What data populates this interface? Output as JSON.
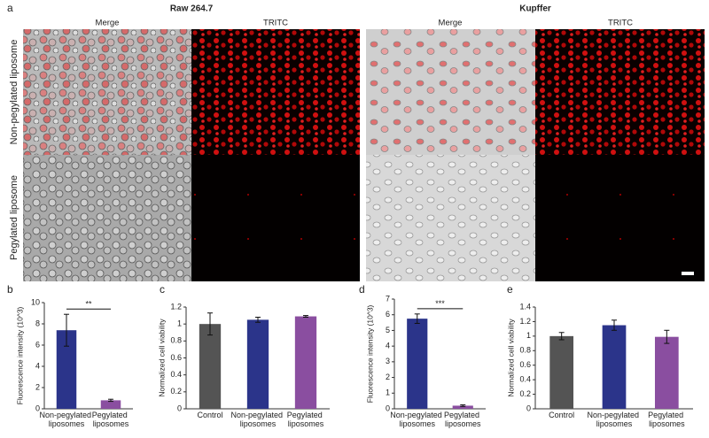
{
  "panel_a": {
    "label": "a",
    "groups": [
      {
        "title": "Raw 264.7",
        "columns": [
          "Merge",
          "TRITC"
        ]
      },
      {
        "title": "Kupffer",
        "columns": [
          "Merge",
          "TRITC"
        ]
      }
    ],
    "rows": [
      "Non-pegylated liposome",
      "Pegylated liposome"
    ]
  },
  "chart_data": [
    {
      "panel": "b",
      "type": "bar",
      "ylabel": "Fluorescence intensity (10^3)",
      "categories": [
        "Non-pegylated liposomes",
        "Pegylated liposomes"
      ],
      "values": [
        7.4,
        0.8
      ],
      "errors": [
        1.5,
        0.1
      ],
      "colors": [
        "#2b348a",
        "#8a4ea0"
      ],
      "ylim": [
        0,
        10
      ],
      "yticks": [
        0,
        2,
        4,
        6,
        8,
        10
      ],
      "annotation": "**"
    },
    {
      "panel": "c",
      "type": "bar",
      "ylabel": "Normalized cell viability",
      "categories": [
        "Control",
        "Non-pegylated liposomes",
        "Pegylated liposomes"
      ],
      "values": [
        1.0,
        1.05,
        1.09
      ],
      "errors": [
        0.13,
        0.03,
        0.01
      ],
      "colors": [
        "#545454",
        "#2b348a",
        "#8a4ea0"
      ],
      "ylim": [
        0,
        1.2
      ],
      "yticks": [
        0,
        0.2,
        0.4,
        0.6,
        0.8,
        1,
        1.2
      ]
    },
    {
      "panel": "d",
      "type": "bar",
      "ylabel": "Fluorescence intensity (10^3)",
      "categories": [
        "Non-pegylated liposomes",
        "Pegylated liposomes"
      ],
      "values": [
        5.75,
        0.2
      ],
      "errors": [
        0.3,
        0.05
      ],
      "colors": [
        "#2b348a",
        "#8a4ea0"
      ],
      "ylim": [
        0,
        7
      ],
      "yticks": [
        0,
        1,
        2,
        3,
        4,
        5,
        6,
        7
      ],
      "annotation": "***"
    },
    {
      "panel": "e",
      "type": "bar",
      "ylabel": "Normalized cell viability",
      "categories": [
        "Control",
        "Non-pegylated liposomes",
        "Pegylated liposomes"
      ],
      "values": [
        1.0,
        1.15,
        0.99
      ],
      "errors": [
        0.05,
        0.07,
        0.09
      ],
      "colors": [
        "#545454",
        "#2b348a",
        "#8a4ea0"
      ],
      "ylim": [
        0,
        1.4
      ],
      "yticks": [
        0,
        0.2,
        0.4,
        0.6,
        0.8,
        1,
        1.2,
        1.4
      ]
    }
  ]
}
